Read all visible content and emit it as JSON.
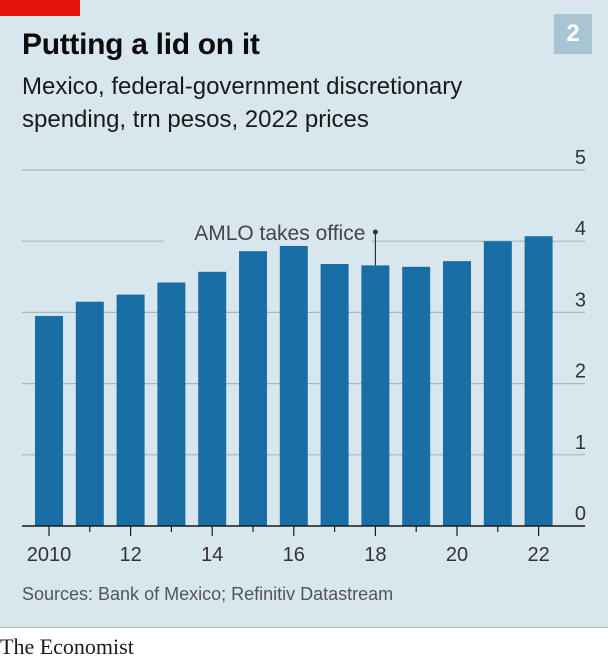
{
  "header": {
    "title": "Putting a lid on it",
    "badge": "2",
    "subtitle_line1": "Mexico, federal-government discretionary",
    "subtitle_line2": "spending, trn pesos, 2022 prices"
  },
  "chart_data": {
    "type": "bar",
    "title": "Putting a lid on it",
    "subtitle": "Mexico, federal-government discretionary spending, trn pesos, 2022 prices",
    "xlabel": "",
    "ylabel": "",
    "categories": [
      "2010",
      "2011",
      "2012",
      "2013",
      "2014",
      "2015",
      "2016",
      "2017",
      "2018",
      "2019",
      "2020",
      "2021",
      "2022"
    ],
    "x_tick_labels": [
      "2010",
      "",
      "12",
      "",
      "14",
      "",
      "16",
      "",
      "18",
      "",
      "20",
      "",
      "22"
    ],
    "values": [
      2.95,
      3.15,
      3.25,
      3.42,
      3.57,
      3.86,
      4.22,
      3.68,
      3.66,
      3.64,
      3.72,
      4.0,
      4.07
    ],
    "ylim": [
      0,
      5
    ],
    "yticks": [
      0,
      1,
      2,
      3,
      4,
      5
    ],
    "y_axis_side": "right",
    "grid": true,
    "bar_color": "#1a6ea6",
    "annotation": {
      "text": "AMLO takes office",
      "at_category": "2018"
    }
  },
  "source": "Sources: Bank of Mexico; Refinitiv Datastream",
  "brand": "The Economist",
  "colors": {
    "background": "#d8e6ee",
    "bar": "#1a6ea6",
    "brand_red": "#e3120b",
    "grid": "#a6b7c1"
  }
}
